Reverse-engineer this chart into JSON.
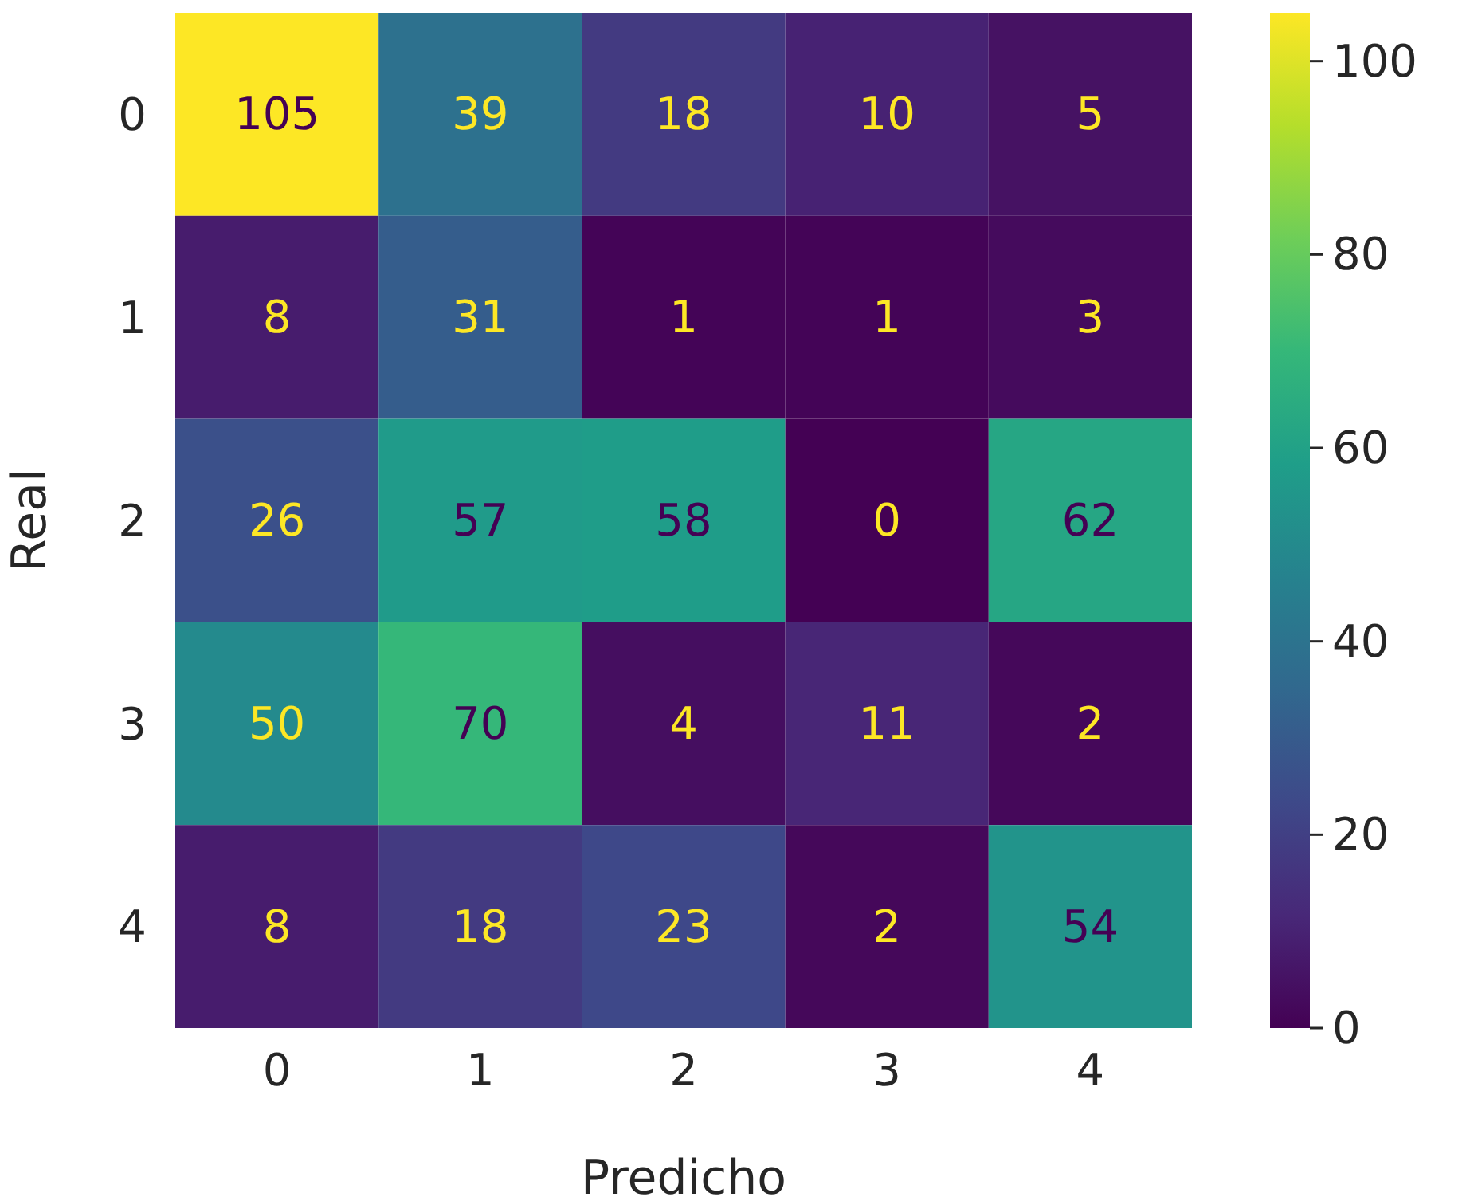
{
  "chart_data": {
    "type": "heatmap",
    "xlabel": "Predicho",
    "ylabel": "Real",
    "categories": [
      "0",
      "1",
      "2",
      "3",
      "4"
    ],
    "y_categories": [
      "0",
      "1",
      "2",
      "3",
      "4"
    ],
    "cells": [
      [
        105,
        39,
        18,
        10,
        5
      ],
      [
        8,
        31,
        1,
        1,
        3
      ],
      [
        26,
        57,
        58,
        0,
        62
      ],
      [
        50,
        70,
        4,
        11,
        2
      ],
      [
        8,
        18,
        23,
        2,
        54
      ]
    ],
    "data_labels": true,
    "clim": [
      0,
      105
    ],
    "cticks": [
      0,
      20,
      40,
      60,
      80,
      100
    ]
  }
}
